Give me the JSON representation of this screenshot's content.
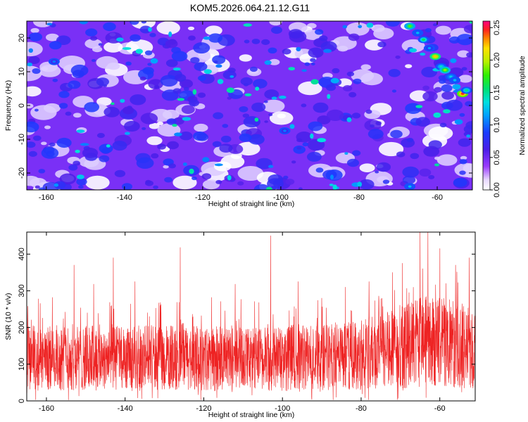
{
  "title": "KOM5.2026.064.21.12.G11",
  "colors": {
    "snr_line": "#ee2222",
    "background": "#ffffff",
    "frame": "#000000"
  },
  "chart_data": [
    {
      "type": "heatmap",
      "title": "KOM5.2026.064.21.12.G11",
      "xlabel": "Height of straight line (km)",
      "ylabel": "Frequency (Hz)",
      "xlim": [
        -165,
        -51
      ],
      "ylim": [
        -25,
        25
      ],
      "x_ticks": [
        -160,
        -140,
        -120,
        -100,
        -80,
        -60
      ],
      "x_tick_labels": [
        "-160",
        "-140",
        "-120",
        "-100",
        "-80",
        "-60"
      ],
      "y_ticks": [
        -20,
        -10,
        0,
        10,
        20
      ],
      "y_tick_labels": [
        "-20",
        "-10",
        "0",
        "10",
        "20"
      ],
      "colorbar": {
        "label": "Normalized spectral amplitude",
        "range": [
          0,
          0.26
        ],
        "ticks": [
          0,
          0.05,
          0.1,
          0.15,
          0.2,
          0.25
        ],
        "tick_labels": [
          "0.00",
          "0.05",
          "0.10",
          "0.15",
          "0.20",
          "0.25"
        ],
        "colormap": "rainbow (white-violet-blue-cyan-green-yellow-red)"
      },
      "strong_features": [
        {
          "x": -67,
          "y": 23.5,
          "value": 0.18
        },
        {
          "x": -65,
          "y": 21.5,
          "value": 0.12
        },
        {
          "x": -63.5,
          "y": 19.5,
          "value": 0.16
        },
        {
          "x": -62,
          "y": 17,
          "value": 0.11
        },
        {
          "x": -60.5,
          "y": 14.5,
          "value": 0.22
        },
        {
          "x": -59,
          "y": 11.5,
          "value": 0.14
        },
        {
          "x": -58,
          "y": 10.5,
          "value": 0.19
        },
        {
          "x": -56.5,
          "y": 8.5,
          "value": 0.13
        },
        {
          "x": -55.5,
          "y": 7.5,
          "value": 0.12
        },
        {
          "x": -53.5,
          "y": 3.5,
          "value": 0.25
        },
        {
          "x": -52.5,
          "y": 4.5,
          "value": 0.15
        },
        {
          "x": -67,
          "y": -24,
          "value": 0.12
        },
        {
          "x": -99,
          "y": -7.5,
          "value": 0.1
        },
        {
          "x": -158,
          "y": 13,
          "value": 0.1
        }
      ]
    },
    {
      "type": "line",
      "xlabel": "Height of straight line (km)",
      "ylabel": "SNR (10 * v/v)",
      "xlim": [
        -165,
        -51
      ],
      "ylim": [
        0,
        460
      ],
      "x_ticks": [
        -160,
        -140,
        -120,
        -100,
        -80,
        -60
      ],
      "x_tick_labels": [
        "-160",
        "-140",
        "-120",
        "-100",
        "-80",
        "-60"
      ],
      "y_ticks": [
        0,
        100,
        200,
        300,
        400
      ],
      "y_tick_labels": [
        "0",
        "100",
        "200",
        "300",
        "400"
      ],
      "series": [
        {
          "color": "#ee2222",
          "x": [
            -165,
            -160,
            -155,
            -150,
            -145,
            -140,
            -135,
            -130,
            -125,
            -120,
            -115,
            -110,
            -105,
            -100,
            -95,
            -90,
            -85,
            -80,
            -75,
            -70,
            -65,
            -60,
            -55,
            -51
          ],
          "values": [
            118,
            115,
            120,
            116,
            122,
            113,
            118,
            115,
            121,
            112,
            117,
            119,
            114,
            116,
            120,
            118,
            124,
            128,
            135,
            142,
            160,
            165,
            150,
            140
          ],
          "peaks": [
            {
              "x": -162,
              "y": 278
            },
            {
              "x": -158.5,
              "y": 282
            },
            {
              "x": -153,
              "y": 370
            },
            {
              "x": -148,
              "y": 318
            },
            {
              "x": -143,
              "y": 390
            },
            {
              "x": -137.5,
              "y": 325
            },
            {
              "x": -131,
              "y": 268
            },
            {
              "x": -126,
              "y": 418
            },
            {
              "x": -118,
              "y": 282
            },
            {
              "x": -112,
              "y": 318
            },
            {
              "x": -106,
              "y": 268
            },
            {
              "x": -103,
              "y": 450
            },
            {
              "x": -96,
              "y": 325
            },
            {
              "x": -90,
              "y": 280
            },
            {
              "x": -84,
              "y": 310
            },
            {
              "x": -78,
              "y": 325
            },
            {
              "x": -72,
              "y": 350
            },
            {
              "x": -69.5,
              "y": 375
            },
            {
              "x": -65,
              "y": 460
            },
            {
              "x": -63,
              "y": 460
            },
            {
              "x": -60,
              "y": 415
            },
            {
              "x": -56,
              "y": 370
            },
            {
              "x": -52.5,
              "y": 390
            }
          ]
        }
      ]
    }
  ]
}
